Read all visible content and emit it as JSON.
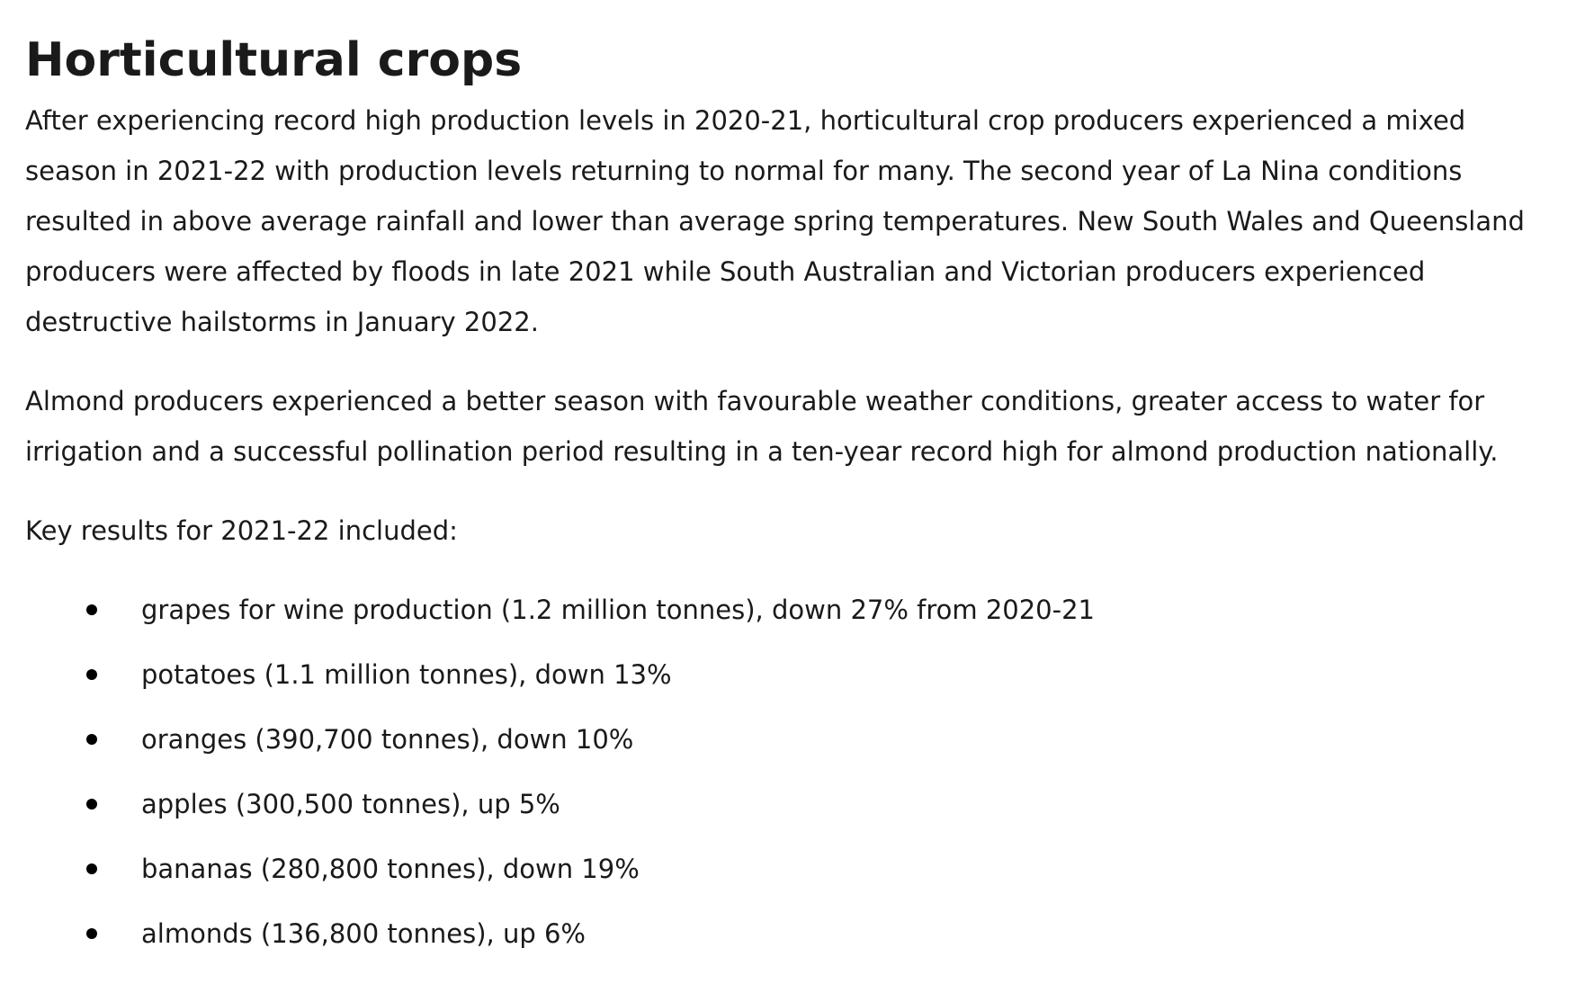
{
  "heading": "Horticultural crops",
  "paragraphs": [
    "After experiencing record high production levels in 2020-21, horticultural crop producers experienced a mixed season in 2021-22 with production levels returning to normal for many. The second year of La Nina conditions resulted in above average rainfall and lower than average spring temperatures. New South Wales and Queensland producers were affected by floods in late 2021 while South Australian and Victorian producers experienced destructive hailstorms in January 2022.",
    "Almond producers experienced a better season with favourable weather conditions, greater access to water for irrigation and a successful pollination period resulting in a ten-year record high for almond production nationally.",
    "Key results for 2021-22 included:"
  ],
  "key_results": [
    "grapes for wine production (1.2 million tonnes), down 27% from 2020-21",
    "potatoes (1.1 million tonnes), down 13%",
    "oranges (390,700 tonnes), down 10%",
    "apples (300,500 tonnes), up 5%",
    "bananas (280,800 tonnes), down 19%",
    "almonds (136,800 tonnes), up 6%"
  ]
}
